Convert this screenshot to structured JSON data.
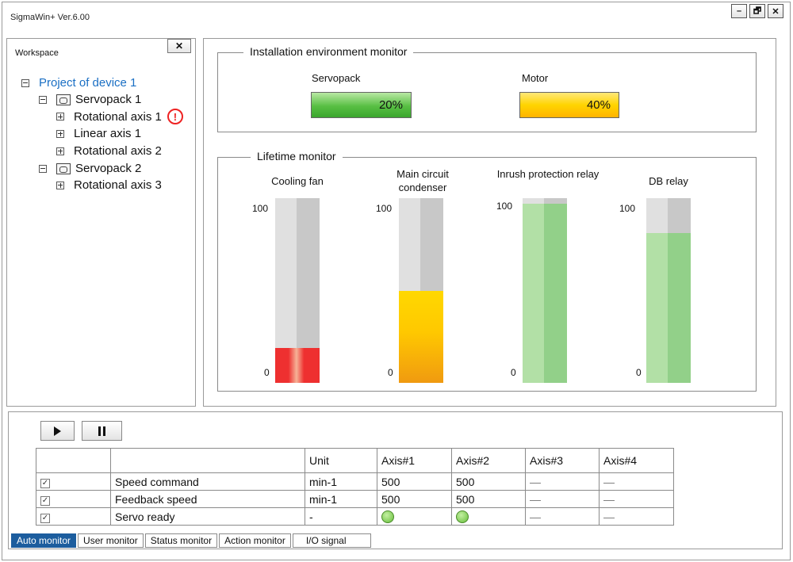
{
  "window": {
    "title": "SigmaWin+ Ver.6.00",
    "minimize": "–",
    "restore": "🗗",
    "close": "✕"
  },
  "workspace": {
    "label": "Workspace",
    "close": "✕",
    "tree": [
      {
        "label": "Project of device 1"
      },
      {
        "label": "Servopack 1"
      },
      {
        "label": "Rotational axis 1",
        "warning": "!"
      },
      {
        "label": "Linear axis 1"
      },
      {
        "label": "Rotational axis 2"
      },
      {
        "label": "Servopack 2"
      },
      {
        "label": "Rotational axis 3"
      }
    ]
  },
  "install_env": {
    "title": "Installation environment monitor",
    "servopack": {
      "label": "Servopack",
      "value": "20%",
      "color": "#58bf43"
    },
    "motor": {
      "label": "Motor",
      "value": "40%",
      "color": "#ffd400"
    }
  },
  "lifetime": {
    "title": "Lifetime monitor",
    "gauges": [
      {
        "name": "Cooling fan",
        "max": "100",
        "min": "0",
        "level": 0.19,
        "color": "#ee3030"
      },
      {
        "name": "Main circuit condenser",
        "max": "100",
        "min": "0",
        "level": 0.5,
        "color": "#ffc800"
      },
      {
        "name": "Inrush protection relay",
        "max": "100",
        "min": "0",
        "level": 0.97,
        "color": "#92d089"
      },
      {
        "name": "DB relay",
        "max": "100",
        "min": "0",
        "level": 0.81,
        "color": "#92d089"
      }
    ]
  },
  "monitor_table": {
    "headers": [
      "",
      "",
      "Unit",
      "Axis#1",
      "Axis#2",
      "Axis#3",
      "Axis#4"
    ],
    "rows": [
      {
        "check": "☑",
        "name": "Speed command",
        "unit": "min-1",
        "a1": "500",
        "a2": "500",
        "a3": "—",
        "a4": "—"
      },
      {
        "check": "☑",
        "name": "Feedback speed",
        "unit": "min-1",
        "a1": "500",
        "a2": "500",
        "a3": "—",
        "a4": "—"
      },
      {
        "check": "☑",
        "name": "Servo ready",
        "unit": "-",
        "a1": "",
        "a2": "",
        "a3": "—",
        "a4": "—"
      }
    ]
  },
  "tabs": [
    "Auto monitor",
    "User monitor",
    "Status monitor",
    "Action monitor",
    "I/O signal"
  ]
}
